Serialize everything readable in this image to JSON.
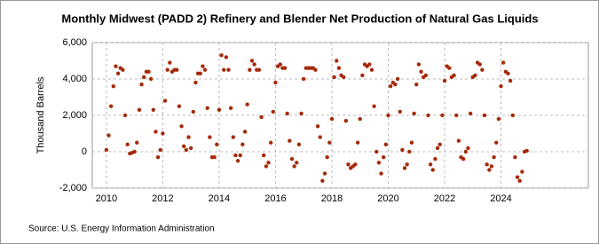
{
  "chart_data": {
    "type": "scatter",
    "title": "Monthly Midwest (PADD 2) Refinery and Blender Net Production of Natural Gas Liquids",
    "y_label": "Thousand Barrels",
    "source": "Source: U.S. Energy Information Administration",
    "color": "#a52a0a",
    "grid": true,
    "xlim": [
      2009.5,
      2027.1
    ],
    "ylim": [
      -2000,
      6000
    ],
    "xticks": [
      2010,
      2012,
      2014,
      2016,
      2018,
      2020,
      2022,
      2024
    ],
    "yticks": [
      {
        "value": -2000,
        "label": "-2,000"
      },
      0,
      {
        "value": 2000,
        "label": "2,000"
      },
      {
        "value": 4000,
        "label": "4,000"
      },
      {
        "value": 6000,
        "label": "6,000"
      }
    ],
    "x": [
      2010,
      2010.083,
      2010.167,
      2010.25,
      2010.333,
      2010.417,
      2010.5,
      2010.583,
      2010.667,
      2010.75,
      2010.833,
      2010.917,
      2011,
      2011.083,
      2011.167,
      2011.25,
      2011.333,
      2011.417,
      2011.5,
      2011.583,
      2011.667,
      2011.75,
      2011.833,
      2011.917,
      2012,
      2012.083,
      2012.167,
      2012.25,
      2012.333,
      2012.417,
      2012.5,
      2012.583,
      2012.667,
      2012.75,
      2012.833,
      2012.917,
      2013,
      2013.083,
      2013.167,
      2013.25,
      2013.333,
      2013.417,
      2013.5,
      2013.583,
      2013.667,
      2013.75,
      2013.833,
      2013.917,
      2014,
      2014.083,
      2014.167,
      2014.25,
      2014.333,
      2014.417,
      2014.5,
      2014.583,
      2014.667,
      2014.75,
      2014.833,
      2014.917,
      2015,
      2015.083,
      2015.167,
      2015.25,
      2015.333,
      2015.417,
      2015.5,
      2015.583,
      2015.667,
      2015.75,
      2015.833,
      2015.917,
      2016,
      2016.083,
      2016.167,
      2016.25,
      2016.333,
      2016.417,
      2016.5,
      2016.583,
      2016.667,
      2016.75,
      2016.833,
      2016.917,
      2017,
      2017.083,
      2017.167,
      2017.25,
      2017.333,
      2017.417,
      2017.5,
      2017.583,
      2017.667,
      2017.75,
      2017.833,
      2017.917,
      2018,
      2018.083,
      2018.167,
      2018.25,
      2018.333,
      2018.417,
      2018.5,
      2018.583,
      2018.667,
      2018.75,
      2018.833,
      2018.917,
      2019,
      2019.083,
      2019.167,
      2019.25,
      2019.333,
      2019.417,
      2019.5,
      2019.583,
      2019.667,
      2019.75,
      2019.833,
      2019.917,
      2020,
      2020.083,
      2020.167,
      2020.25,
      2020.333,
      2020.417,
      2020.5,
      2020.583,
      2020.667,
      2020.75,
      2020.833,
      2020.917,
      2021,
      2021.083,
      2021.167,
      2021.25,
      2021.333,
      2021.417,
      2021.5,
      2021.583,
      2021.667,
      2021.75,
      2021.833,
      2021.917,
      2022,
      2022.083,
      2022.167,
      2022.25,
      2022.333,
      2022.417,
      2022.5,
      2022.583,
      2022.667,
      2022.75,
      2022.833,
      2022.917,
      2023,
      2023.083,
      2023.167,
      2023.25,
      2023.333,
      2023.417,
      2023.5,
      2023.583,
      2023.667,
      2023.75,
      2023.833,
      2023.917,
      2024,
      2024.083,
      2024.167,
      2024.25,
      2024.333,
      2024.417,
      2024.5,
      2024.583,
      2024.667,
      2024.75,
      2024.833,
      2024.917
    ],
    "values": [
      100,
      900,
      2500,
      3600,
      4700,
      4300,
      4600,
      4500,
      2000,
      400,
      -100,
      -50,
      0,
      500,
      2300,
      3700,
      4100,
      4400,
      4400,
      4000,
      2300,
      1100,
      -300,
      100,
      1000,
      2800,
      4500,
      4900,
      4400,
      4500,
      4500,
      2500,
      1400,
      300,
      100,
      800,
      200,
      2200,
      3800,
      4300,
      4300,
      4700,
      4500,
      2400,
      800,
      -300,
      -300,
      400,
      2300,
      5300,
      4500,
      5200,
      4500,
      2400,
      800,
      -200,
      -500,
      -200,
      400,
      1100,
      2600,
      4500,
      5000,
      4800,
      4500,
      4500,
      1900,
      -200,
      -800,
      -600,
      500,
      2200,
      3800,
      4700,
      4800,
      4600,
      4600,
      2100,
      600,
      -400,
      -800,
      -600,
      400,
      2100,
      4000,
      4600,
      4600,
      4600,
      4600,
      4500,
      1400,
      800,
      -1600,
      -1200,
      -300,
      500,
      1800,
      4100,
      5000,
      4600,
      4200,
      4100,
      1700,
      -700,
      -900,
      -800,
      -700,
      500,
      1800,
      4200,
      4800,
      4700,
      4800,
      4500,
      2500,
      0,
      -600,
      -1200,
      -300,
      400,
      2000,
      3600,
      3800,
      3700,
      4000,
      2200,
      100,
      -900,
      -700,
      0,
      500,
      2100,
      3700,
      4800,
      4400,
      4100,
      4200,
      2000,
      -700,
      -1000,
      -400,
      200,
      400,
      2000,
      3900,
      4700,
      4600,
      4100,
      4200,
      2000,
      600,
      -300,
      -400,
      0,
      200,
      2100,
      4100,
      4200,
      4900,
      4800,
      4500,
      2000,
      -700,
      -1000,
      -800,
      -300,
      500,
      1800,
      3600,
      4900,
      4400,
      4300,
      3900,
      2000,
      -300,
      -1400,
      -1600,
      -1100,
      0,
      50
    ]
  }
}
